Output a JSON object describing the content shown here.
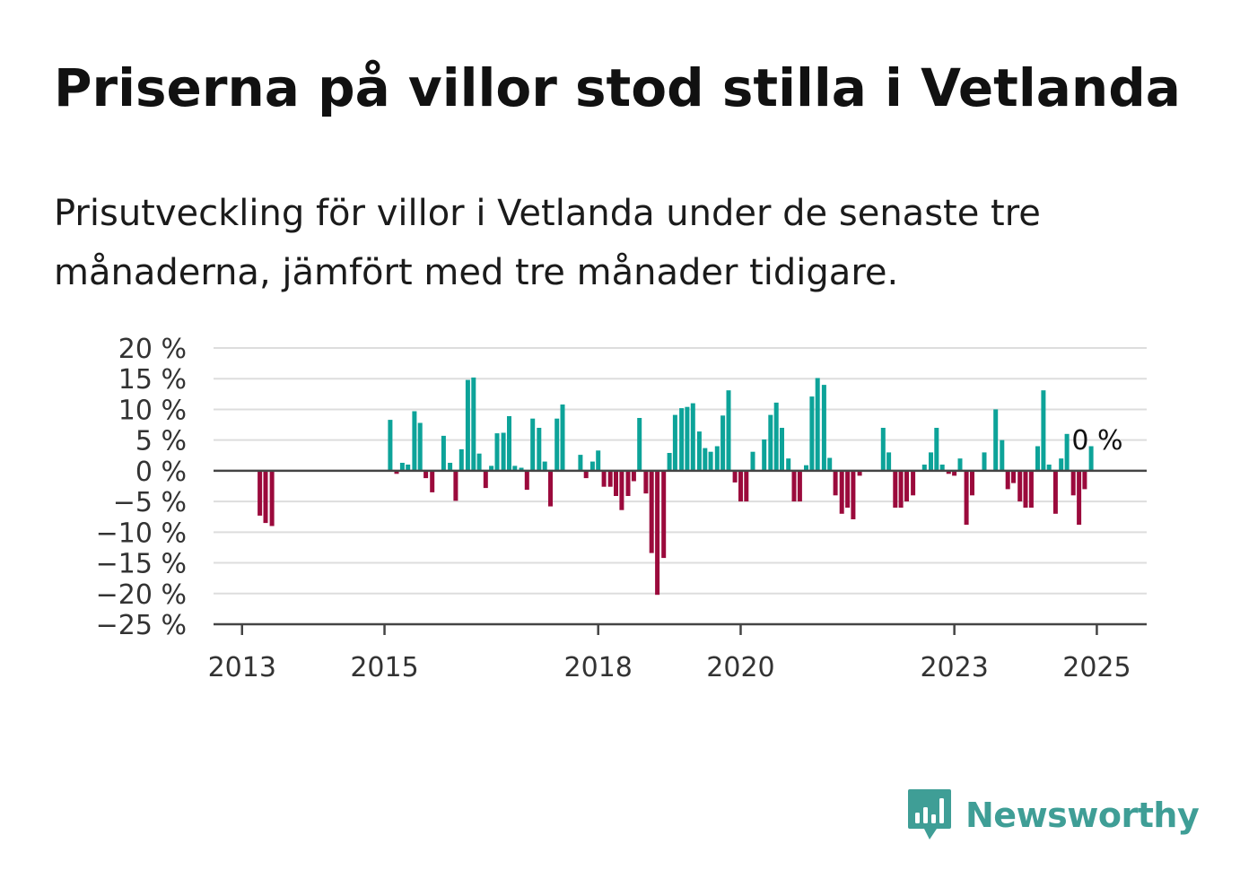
{
  "title": "Priserna på villor stod stilla i Vetlanda",
  "subtitle": "Prisutveckling för villor i Vetlanda under de senaste tre månaderna, jämfört med tre månader tidigare.",
  "brand": {
    "name": "Newsworthy",
    "icon": "newsworthy-logo-icon",
    "color": "#3f9e96"
  },
  "colors": {
    "positive": "#0da399",
    "negative": "#9b0a3c",
    "grid": "#dddddd",
    "axis": "#444444"
  },
  "chart_data": {
    "type": "bar",
    "xlabel": "",
    "ylabel": "",
    "ylim": [
      -25,
      20
    ],
    "yticks": [
      20,
      15,
      10,
      5,
      0,
      -5,
      -10,
      -15,
      -20,
      -25
    ],
    "ytick_labels": [
      "20 %",
      "15 %",
      "10 %",
      "5 %",
      "0 %",
      "−5 %",
      "−10 %",
      "−15 %",
      "−20 %",
      "−25 %"
    ],
    "xlim": [
      2012.6,
      2025.7
    ],
    "xticks": [
      2013,
      2015,
      2018,
      2020,
      2023,
      2025
    ],
    "xtick_labels": [
      "2013",
      "2015",
      "2018",
      "2020",
      "2023",
      "2025"
    ],
    "grid": true,
    "last_value_label": "0 %",
    "series": [
      {
        "x": [
          2013.25,
          2013.33,
          2013.42,
          2015.08,
          2015.17,
          2015.25,
          2015.33,
          2015.42,
          2015.5,
          2015.58,
          2015.67,
          2015.83,
          2015.92,
          2016.0,
          2016.08,
          2016.17,
          2016.25,
          2016.33,
          2016.42,
          2016.5,
          2016.58,
          2016.67,
          2016.75,
          2016.83,
          2016.92,
          2017.0,
          2017.08,
          2017.17,
          2017.25,
          2017.33,
          2017.42,
          2017.5,
          2017.75,
          2017.83,
          2017.92,
          2018.0,
          2018.08,
          2018.17,
          2018.25,
          2018.33,
          2018.42,
          2018.5,
          2018.58,
          2018.67,
          2018.75,
          2018.83,
          2018.92,
          2019.0,
          2019.08,
          2019.17,
          2019.25,
          2019.33,
          2019.42,
          2019.5,
          2019.58,
          2019.67,
          2019.75,
          2019.83,
          2019.92,
          2020.0,
          2020.08,
          2020.17,
          2020.33,
          2020.42,
          2020.5,
          2020.58,
          2020.67,
          2020.75,
          2020.83,
          2020.92,
          2021.0,
          2021.08,
          2021.17,
          2021.25,
          2021.33,
          2021.42,
          2021.5,
          2021.58,
          2021.67,
          2022.0,
          2022.08,
          2022.17,
          2022.25,
          2022.33,
          2022.42,
          2022.58,
          2022.67,
          2022.75,
          2022.83,
          2022.92,
          2023.0,
          2023.08,
          2023.17,
          2023.25,
          2023.42,
          2023.58,
          2023.67,
          2023.75,
          2023.83,
          2023.92,
          2024.0,
          2024.08,
          2024.17,
          2024.25,
          2024.33,
          2024.42,
          2024.5,
          2024.58,
          2024.67,
          2024.75,
          2024.83,
          2024.92,
          2025.0
        ],
        "values": [
          -7.3,
          -8.5,
          -9,
          8.3,
          -0.5,
          1.3,
          1,
          9.7,
          7.8,
          -1.2,
          -3.5,
          5.7,
          1.3,
          -4.9,
          3.5,
          14.8,
          15.2,
          2.8,
          -2.8,
          0.8,
          6.1,
          6.2,
          8.9,
          0.8,
          0.5,
          -3.1,
          8.5,
          7,
          1.5,
          -5.8,
          8.5,
          10.8,
          2.6,
          -1.2,
          1.5,
          3.3,
          -2.6,
          -2.6,
          -4.1,
          -6.4,
          -4.1,
          -1.7,
          8.6,
          -3.7,
          -13.4,
          -20.2,
          -14.2,
          2.9,
          9.1,
          10.2,
          10.4,
          11,
          6.4,
          3.7,
          3.1,
          4,
          9,
          13.1,
          -1.9,
          -5,
          -5,
          3.1,
          5.1,
          9.1,
          11.1,
          7,
          2,
          -5,
          -5,
          0.9,
          12.1,
          15.1,
          14,
          2.1,
          -4,
          -7,
          -6,
          -7.9,
          -0.8,
          7,
          3,
          -6,
          -6,
          -5,
          -4,
          1,
          3,
          7,
          1,
          -0.5,
          -0.8,
          2,
          -8.8,
          -4,
          3,
          10,
          5,
          -3,
          -2,
          -5,
          -6,
          -6,
          4,
          13.1,
          1,
          -7,
          2,
          6,
          -4,
          -8.8,
          -3,
          4,
          0
        ]
      }
    ]
  }
}
